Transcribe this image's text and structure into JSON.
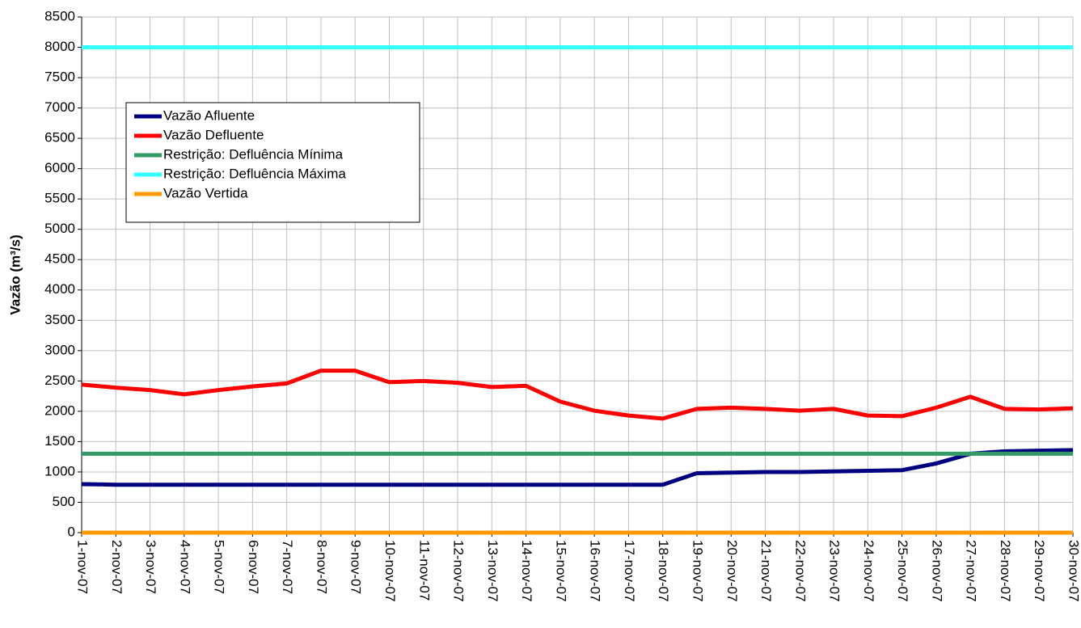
{
  "chart_data": {
    "type": "line",
    "y_label": "Vazão (m³/s)",
    "categories": [
      "1-nov-07",
      "2-nov-07",
      "3-nov-07",
      "4-nov-07",
      "5-nov-07",
      "6-nov-07",
      "7-nov-07",
      "8-nov-07",
      "9-nov-07",
      "10-nov-07",
      "11-nov-07",
      "12-nov-07",
      "13-nov-07",
      "14-nov-07",
      "15-nov-07",
      "16-nov-07",
      "17-nov-07",
      "18-nov-07",
      "19-nov-07",
      "20-nov-07",
      "21-nov-07",
      "22-nov-07",
      "23-nov-07",
      "24-nov-07",
      "25-nov-07",
      "26-nov-07",
      "27-nov-07",
      "28-nov-07",
      "29-nov-07",
      "30-nov-07"
    ],
    "series": [
      {
        "name": "Vazão Afluente",
        "color": "#000080",
        "values": [
          800,
          790,
          790,
          790,
          790,
          790,
          790,
          790,
          790,
          790,
          790,
          790,
          790,
          790,
          790,
          790,
          790,
          790,
          980,
          990,
          1000,
          1000,
          1010,
          1020,
          1030,
          1140,
          1300,
          1340,
          1350,
          1360
        ]
      },
      {
        "name": "Vazão Defluente",
        "color": "#ff0000",
        "values": [
          2440,
          2390,
          2350,
          2280,
          2350,
          2410,
          2460,
          2670,
          2670,
          2480,
          2500,
          2470,
          2400,
          2420,
          2160,
          2010,
          1930,
          1880,
          2040,
          2060,
          2040,
          2010,
          2040,
          1930,
          1920,
          2060,
          2240,
          2040,
          2030,
          2050
        ]
      },
      {
        "name": "Restrição: Defluência Mínima",
        "color": "#339966",
        "values": [
          1300,
          1300,
          1300,
          1300,
          1300,
          1300,
          1300,
          1300,
          1300,
          1300,
          1300,
          1300,
          1300,
          1300,
          1300,
          1300,
          1300,
          1300,
          1300,
          1300,
          1300,
          1300,
          1300,
          1300,
          1300,
          1300,
          1300,
          1300,
          1300,
          1300
        ]
      },
      {
        "name": "Restrição: Defluência Máxima",
        "color": "#33ffff",
        "values": [
          8000,
          8000,
          8000,
          8000,
          8000,
          8000,
          8000,
          8000,
          8000,
          8000,
          8000,
          8000,
          8000,
          8000,
          8000,
          8000,
          8000,
          8000,
          8000,
          8000,
          8000,
          8000,
          8000,
          8000,
          8000,
          8000,
          8000,
          8000,
          8000,
          8000
        ]
      },
      {
        "name": "Vazão Vertida",
        "color": "#ff9900",
        "values": [
          0,
          0,
          0,
          0,
          0,
          0,
          0,
          0,
          0,
          0,
          0,
          0,
          0,
          0,
          0,
          0,
          0,
          0,
          0,
          0,
          0,
          0,
          0,
          0,
          0,
          0,
          0,
          0,
          0,
          0
        ]
      }
    ],
    "ylim": [
      0,
      8500
    ],
    "yticks": [
      0,
      500,
      1000,
      1500,
      2000,
      2500,
      3000,
      3500,
      4000,
      4500,
      5000,
      5500,
      6000,
      6500,
      7000,
      7500,
      8000,
      8500
    ],
    "grid": true
  }
}
